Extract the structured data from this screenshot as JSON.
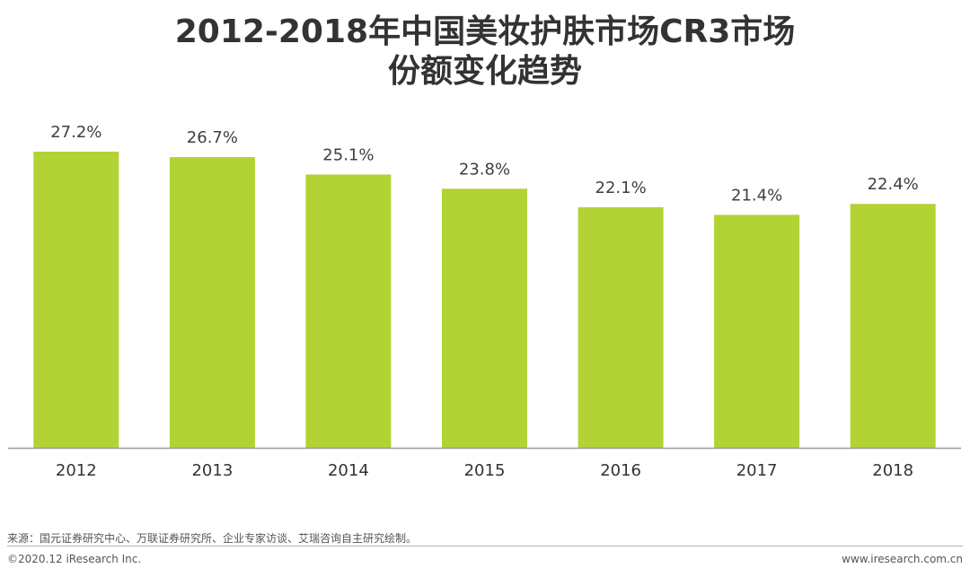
{
  "title_lines": [
    "2012-2018年中国美妆护肤市场CR3市场",
    "份额变化趋势"
  ],
  "chart_data": {
    "type": "bar",
    "title": "2012-2018年中国美妆护肤市场CR3市场份额变化趋势",
    "categories": [
      "2012",
      "2013",
      "2014",
      "2015",
      "2016",
      "2017",
      "2018"
    ],
    "values": [
      27.2,
      26.7,
      25.1,
      23.8,
      22.1,
      21.4,
      22.4
    ],
    "data_labels": [
      "27.2%",
      "26.7%",
      "25.1%",
      "23.8%",
      "22.1%",
      "21.4%",
      "22.4%"
    ],
    "xlabel": "",
    "ylabel": "",
    "ylim": [
      0,
      27.2
    ],
    "grid": false,
    "legend": "none",
    "bar_color": "#b3d234",
    "axis_color": "#999999"
  },
  "footer": {
    "source": "来源：国元证券研究中心、万联证券研究所、企业专家访谈、艾瑞咨询自主研究绘制。",
    "copyright": "©2020.12 iResearch Inc.",
    "website": "www.iresearch.com.cn"
  }
}
